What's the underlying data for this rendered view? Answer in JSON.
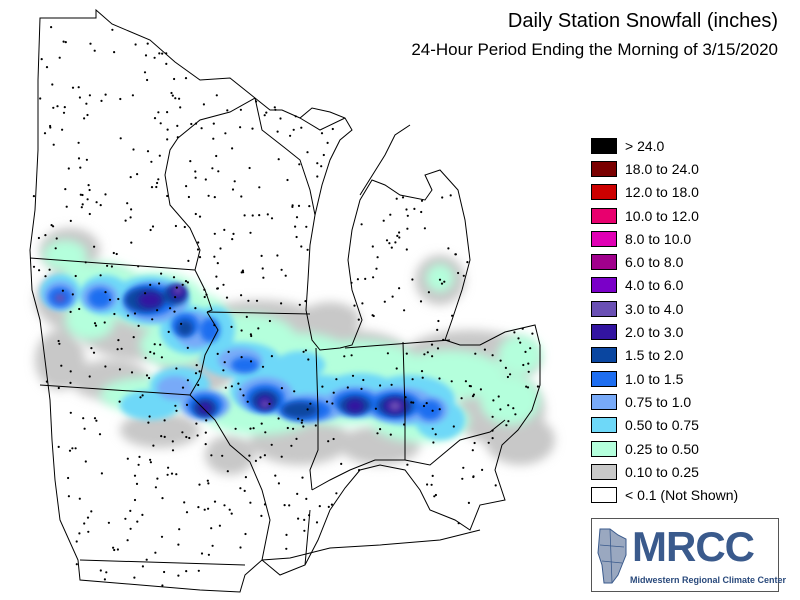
{
  "title": "Daily Station Snowfall (inches)",
  "subtitle": "24-Hour Period Ending the Morning of 3/15/2020",
  "legend": [
    {
      "label": "> 24.0",
      "color": "#000000"
    },
    {
      "label": "18.0 to 24.0",
      "color": "#7a0000"
    },
    {
      "label": "12.0 to 18.0",
      "color": "#cc0000"
    },
    {
      "label": "10.0 to 12.0",
      "color": "#e8006e"
    },
    {
      "label": "8.0 to 10.0",
      "color": "#e000b4"
    },
    {
      "label": "6.0 to 8.0",
      "color": "#a0008c"
    },
    {
      "label": "4.0 to 6.0",
      "color": "#7a00c8"
    },
    {
      "label": "3.0 to 4.0",
      "color": "#6a50b4"
    },
    {
      "label": "2.0 to 3.0",
      "color": "#3214a0"
    },
    {
      "label": "1.5 to 2.0",
      "color": "#0a46a0"
    },
    {
      "label": "1.0 to 1.5",
      "color": "#1e6ef0"
    },
    {
      "label": "0.75 to 1.0",
      "color": "#78aaf8"
    },
    {
      "label": "0.50 to 0.75",
      "color": "#6ed8f8"
    },
    {
      "label": "0.25 to 0.50",
      "color": "#b4ffdc"
    },
    {
      "label": "0.10 to 0.25",
      "color": "#c8c8c8"
    },
    {
      "label": "< 0.1 (Not Shown)",
      "color": "#ffffff"
    }
  ],
  "logo": {
    "name": "MRCC",
    "subtitle": "Midwestern Regional Climate Center"
  }
}
